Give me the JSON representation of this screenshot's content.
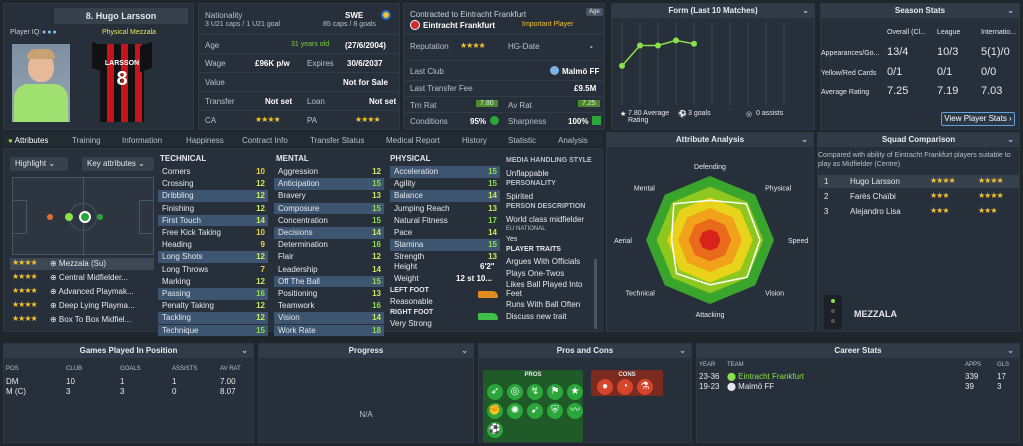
{
  "player": {
    "number_name": "8. Hugo Larsson",
    "iq_label": "Player IQ:",
    "role": "Physical Mezzala",
    "shirt_name": "LARSSON",
    "shirt_number": "8"
  },
  "info": {
    "nationality_label": "Nationality",
    "nationality_value": "SWE",
    "caps_line": "3 U21 caps / 1 U21 goal",
    "caps_line2": "85 caps / 8 goals",
    "age_label": "Age",
    "age_years": "31 years old",
    "age_date": "(27/6/2004)",
    "wage_label": "Wage",
    "wage_value": "£96K p/w",
    "expires_label": "Expires",
    "expires_value": "30/6/2037",
    "value_label": "Value",
    "value_value": "Not for Sale",
    "transfer_label": "Transfer",
    "transfer_value": "Not set",
    "loan_label": "Loan",
    "loan_value": "Not set",
    "ca_label": "CA",
    "pa_label": "PA"
  },
  "club": {
    "contracted": "Contracted to Eintracht Frankfurt",
    "age_badge": "Age",
    "club_name": "Eintracht Frankfurt",
    "status": "Important Player",
    "reputation_label": "Reputation",
    "hg_label": "HG-Date",
    "hg_value": "-",
    "last_club_label": "Last Club",
    "last_club_value": "Malmö FF",
    "last_fee_label": "Last Transfer Fee",
    "last_fee_value": "£9.5M",
    "trn_label": "Trn Rat",
    "trn_value": "7.80",
    "av_label": "Av Rat",
    "av_value": "7.25",
    "cond_label": "Conditions",
    "cond_value": "95%",
    "sharp_label": "Sharpness",
    "sharp_value": "100%"
  },
  "form": {
    "title": "Form (Last 10 Matches)",
    "avg": "7.80 Average Rating",
    "goals": "3 goals",
    "assists": "0 assists"
  },
  "season": {
    "title": "Season Stats",
    "cols": [
      "Overall (Cl...",
      "League",
      "Internatio..."
    ],
    "rows": [
      {
        "label": "Appearances/Go...",
        "v": [
          "13/4",
          "10/3",
          "5(1)/0"
        ]
      },
      {
        "label": "Yellow/Red Cards",
        "v": [
          "0/1",
          "0/1",
          "0/0"
        ]
      },
      {
        "label": "Average Rating",
        "v": [
          "7.25",
          "7.19",
          "7.03"
        ]
      }
    ],
    "button": "View Player Stats"
  },
  "tabs": [
    "Attributes",
    "Training",
    "Information",
    "Happiness",
    "Contract Info",
    "Transfer Status",
    "Medical Report",
    "History",
    "Statistic",
    "Analysis"
  ],
  "left": {
    "highlight": "Highlight",
    "key_attrs": "Key attributes",
    "roles": [
      {
        "name": "Mezzala (Su)",
        "stars": "★★★★"
      },
      {
        "name": "Central Midfielder...",
        "stars": "★★★★"
      },
      {
        "name": "Advanced Playmak...",
        "stars": "★★★★"
      },
      {
        "name": "Deep Lying Playma...",
        "stars": "★★★★"
      },
      {
        "name": "Box To Box Midfiel...",
        "stars": "★★★★"
      }
    ]
  },
  "technical": {
    "title": "TECHNICAL",
    "items": [
      [
        "Corners",
        "10"
      ],
      [
        "Crossing",
        "12"
      ],
      [
        "Dribbling",
        "12"
      ],
      [
        "Finishing",
        "12"
      ],
      [
        "First Touch",
        "14"
      ],
      [
        "Free Kick Taking",
        "10"
      ],
      [
        "Heading",
        "9"
      ],
      [
        "Long Shots",
        "12"
      ],
      [
        "Long Throws",
        "7"
      ],
      [
        "Marking",
        "12"
      ],
      [
        "Passing",
        "16"
      ],
      [
        "Penalty Taking",
        "12"
      ],
      [
        "Tackling",
        "12"
      ],
      [
        "Technique",
        "15"
      ]
    ]
  },
  "mental": {
    "title": "MENTAL",
    "items": [
      [
        "Aggression",
        "12"
      ],
      [
        "Anticipation",
        "15"
      ],
      [
        "Bravery",
        "13"
      ],
      [
        "Composure",
        "15"
      ],
      [
        "Concentration",
        "15"
      ],
      [
        "Decisions",
        "14"
      ],
      [
        "Determination",
        "16"
      ],
      [
        "Flair",
        "12"
      ],
      [
        "Leadership",
        "14"
      ],
      [
        "Off The Ball",
        "15"
      ],
      [
        "Positioning",
        "13"
      ],
      [
        "Teamwork",
        "16"
      ],
      [
        "Vision",
        "14"
      ],
      [
        "Work Rate",
        "18"
      ]
    ]
  },
  "physical": {
    "title": "PHYSICAL",
    "items": [
      [
        "Acceleration",
        "15"
      ],
      [
        "Agility",
        "15"
      ],
      [
        "Balance",
        "14"
      ],
      [
        "Jumping Reach",
        "13"
      ],
      [
        "Natural Fitness",
        "17"
      ],
      [
        "Pace",
        "14"
      ],
      [
        "Stamina",
        "15"
      ],
      [
        "Strength",
        "13"
      ]
    ],
    "height_label": "Height",
    "height_value": "6'2\"",
    "weight_label": "Weight",
    "weight_value": "12 st 10...",
    "left_foot_label": "LEFT FOOT",
    "left_foot_value": "Reasonable",
    "right_foot_label": "RIGHT FOOT",
    "right_foot_value": "Very Strong"
  },
  "media": {
    "title": "MEDIA HANDLING STYLE",
    "style": "Unflappable",
    "personality_title": "PERSONALITY",
    "personality": "Spirited",
    "desc_title": "PERSON DESCRIPTION",
    "desc": "World class midfielder",
    "nat_title": "EU NATIONAL",
    "nat": "Yes",
    "traits_title": "PLAYER TRAITS",
    "traits": [
      "Argues With Officials",
      "Plays One-Twos",
      "Likes Ball Played Into Feet",
      "Runs With Ball Often",
      "Discuss new trait"
    ]
  },
  "analysis": {
    "title": "Attribute Analysis",
    "labels": [
      "Defending",
      "Physical",
      "Speed",
      "Vision",
      "Attacking",
      "Technical",
      "Aerial",
      "Mental"
    ],
    "values": [
      0.62,
      0.8,
      0.78,
      0.82,
      0.7,
      0.74,
      0.6,
      0.8
    ]
  },
  "squad": {
    "title": "Squad Comparison",
    "desc": "Compared with ability of Eintracht Frankfurt players suitable to play as Midfielder (Centre)",
    "rows": [
      {
        "rank": "1",
        "name": "Hugo Larsson",
        "s1": "★★★★",
        "s2": "★★★★"
      },
      {
        "rank": "2",
        "name": "Farès Chaïbi",
        "s1": "★★★",
        "s2": "★★★★"
      },
      {
        "rank": "3",
        "name": "Alejandro Lisa",
        "s1": "★★★",
        "s2": "★★★"
      }
    ],
    "role": "MEZZALA"
  },
  "games": {
    "title": "Games Played In Position",
    "cols": [
      "POS",
      "CLUB",
      "GOALS",
      "ASSISTS",
      "AV RAT"
    ],
    "rows": [
      [
        "DM",
        "10",
        "1",
        "1",
        "7.00"
      ],
      [
        "M (C)",
        "3",
        "3",
        "0",
        "8.07"
      ]
    ]
  },
  "progress": {
    "title": "Progress",
    "na": "N/A"
  },
  "proscons": {
    "title": "Pros and Cons",
    "pros": "PROS",
    "cons": "CONS"
  },
  "career": {
    "title": "Career Stats",
    "cols": [
      "YEAR",
      "TEAM",
      "APPS",
      "GLS"
    ],
    "rows": [
      [
        "23-36",
        "Eintracht Frankfurt",
        "339",
        "17"
      ],
      [
        "19-23",
        "Malmö FF",
        "39",
        "3"
      ]
    ]
  },
  "colors": {
    "panel": "#27303a",
    "accent": "#64a0dc",
    "green": "#7ad13a",
    "star": "#f2c230"
  },
  "chart_data": {
    "type": "line",
    "title": "Form (Last 10 Matches)",
    "x": [
      1,
      2,
      3,
      4,
      5
    ],
    "values": [
      7.3,
      8.5,
      8.5,
      8.8,
      8.6
    ],
    "ylim": [
      5,
      10
    ]
  }
}
